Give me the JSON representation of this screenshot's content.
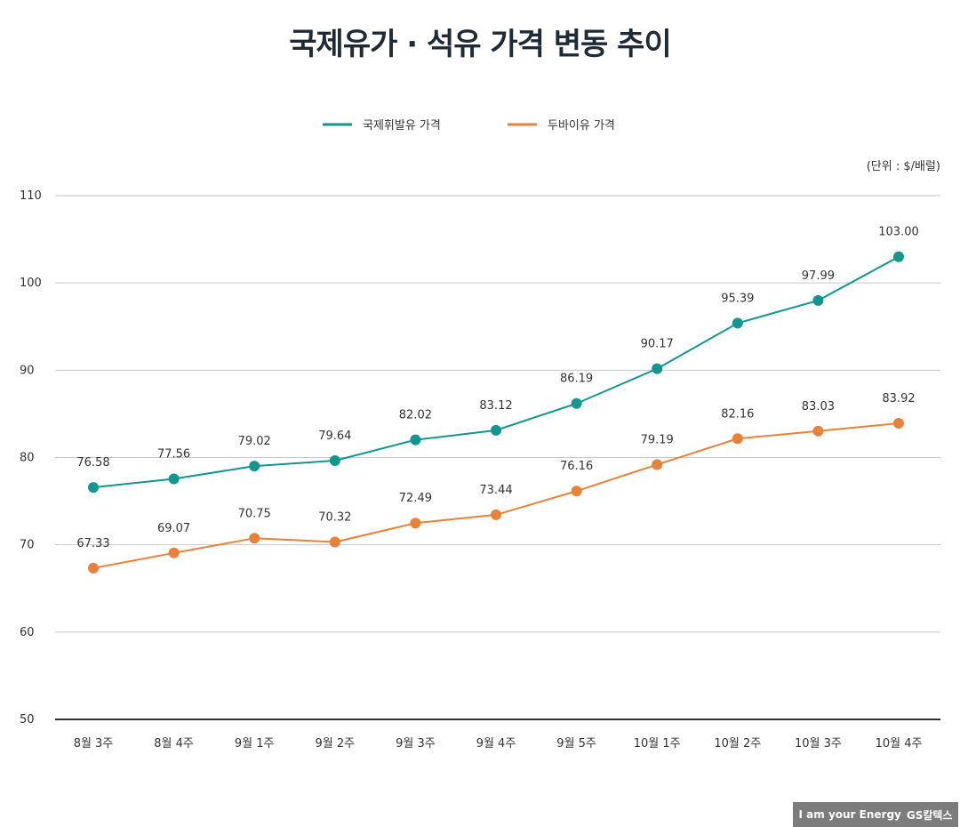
{
  "chart_data": {
    "type": "line",
    "title": "국제유가 · 석유 가격 변동 추이",
    "unit_note": "(단위 : $/배럴)",
    "categories": [
      "8월 3주",
      "8월 4주",
      "9월 1주",
      "9월 2주",
      "9월 3주",
      "9월 4주",
      "9월 5주",
      "10월 1주",
      "10월 2주",
      "10월 3주",
      "10월 4주"
    ],
    "series": [
      {
        "name": "국제휘발유 가격",
        "color": "#13968f",
        "values": [
          76.58,
          77.56,
          79.02,
          79.64,
          82.02,
          83.12,
          86.19,
          90.17,
          95.39,
          97.99,
          103.0
        ],
        "labels": [
          "76.58",
          "77.56",
          "79.02",
          "79.64",
          "82.02",
          "83.12",
          "86.19",
          "90.17",
          "95.39",
          "97.99",
          "103.00"
        ]
      },
      {
        "name": "두바이유 가격",
        "color": "#e8823a",
        "values": [
          67.33,
          69.07,
          70.75,
          70.32,
          72.49,
          73.44,
          76.16,
          79.19,
          82.16,
          83.03,
          83.92
        ],
        "labels": [
          "67.33",
          "69.07",
          "70.75",
          "70.32",
          "72.49",
          "73.44",
          "76.16",
          "79.19",
          "82.16",
          "83.03",
          "83.92"
        ]
      }
    ],
    "ylim": [
      50,
      110
    ],
    "yticks": [
      "50",
      "60",
      "70",
      "80",
      "90",
      "100",
      "110"
    ],
    "grid": true,
    "legend_position": "top-center"
  },
  "logo": {
    "text": "I am your Energy",
    "brand": "GS칼텍스"
  }
}
